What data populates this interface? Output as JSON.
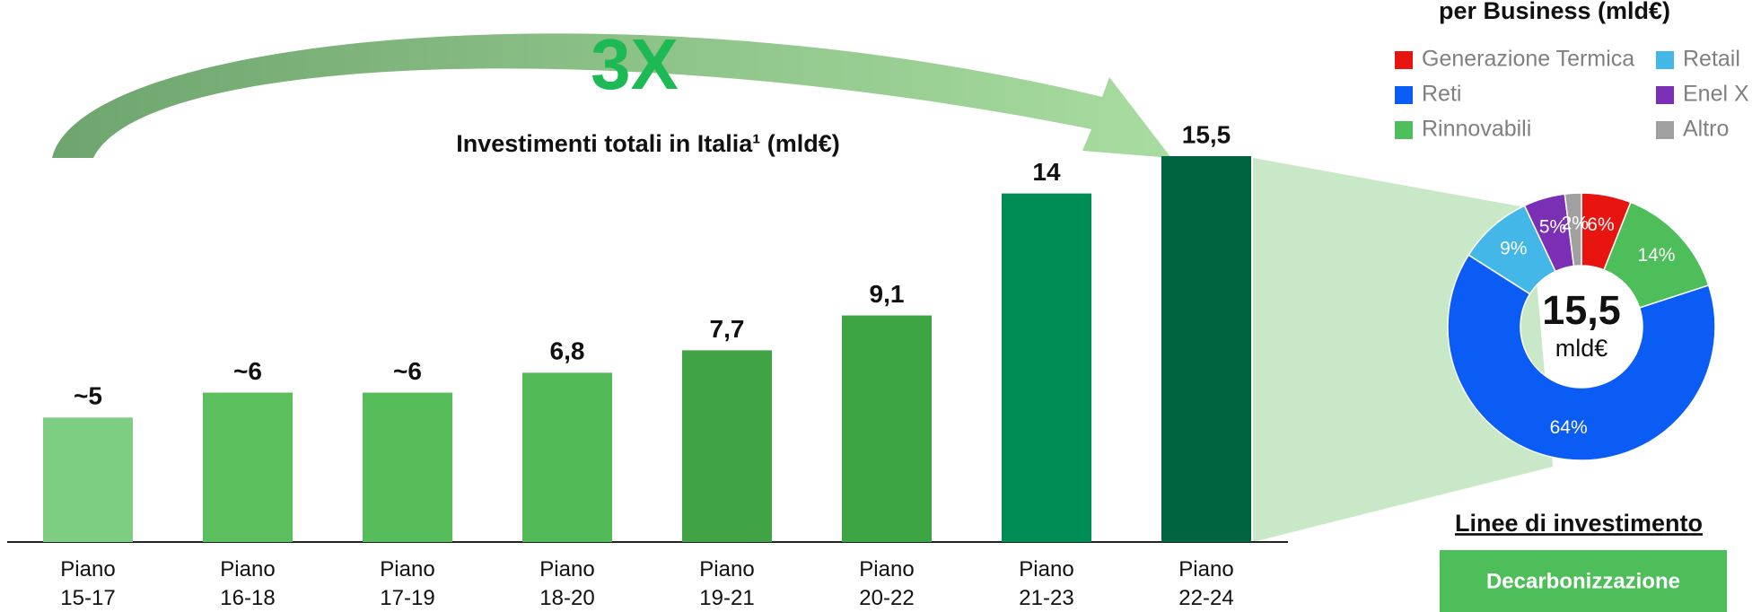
{
  "chart_data": [
    {
      "type": "bar",
      "title": "Investimenti totali in Italia¹ (mld€)",
      "annotation": "3X",
      "categories": [
        "Piano 15-17",
        "Piano 16-18",
        "Piano 17-19",
        "Piano 18-20",
        "Piano 19-21",
        "Piano 20-22",
        "Piano 21-23",
        "Piano 22-24"
      ],
      "values": [
        5,
        6,
        6,
        6.8,
        7.7,
        9.1,
        14,
        15.5
      ],
      "value_labels": [
        "~5",
        "~6",
        "~6",
        "6,8",
        "7,7",
        "9,1",
        "14",
        "15,5"
      ],
      "colors": [
        "#7dce82",
        "#5bbf5e",
        "#56bd5a",
        "#52bb58",
        "#40a447",
        "#3da543",
        "#008c55",
        "#006441"
      ]
    },
    {
      "type": "pie",
      "title": "per Business (mld€)",
      "categories": [
        "Generazione Termica",
        "Rinnovabili",
        "Reti",
        "Retail",
        "Enel X",
        "Altro"
      ],
      "values": [
        6,
        14,
        64,
        9,
        5,
        2
      ],
      "value_labels": [
        "6%",
        "14%",
        "64%",
        "9%",
        "5%",
        "2%"
      ],
      "colors": [
        "#e8140f",
        "#4dbe5a",
        "#0a5cf5",
        "#42b7e8",
        "#7a2fb5",
        "#a0a0a0"
      ],
      "center_label": "15,5",
      "center_unit": "mld€"
    }
  ],
  "sidebar": {
    "heading": "Linee di investimento",
    "button": "Decarbonizzazione"
  }
}
